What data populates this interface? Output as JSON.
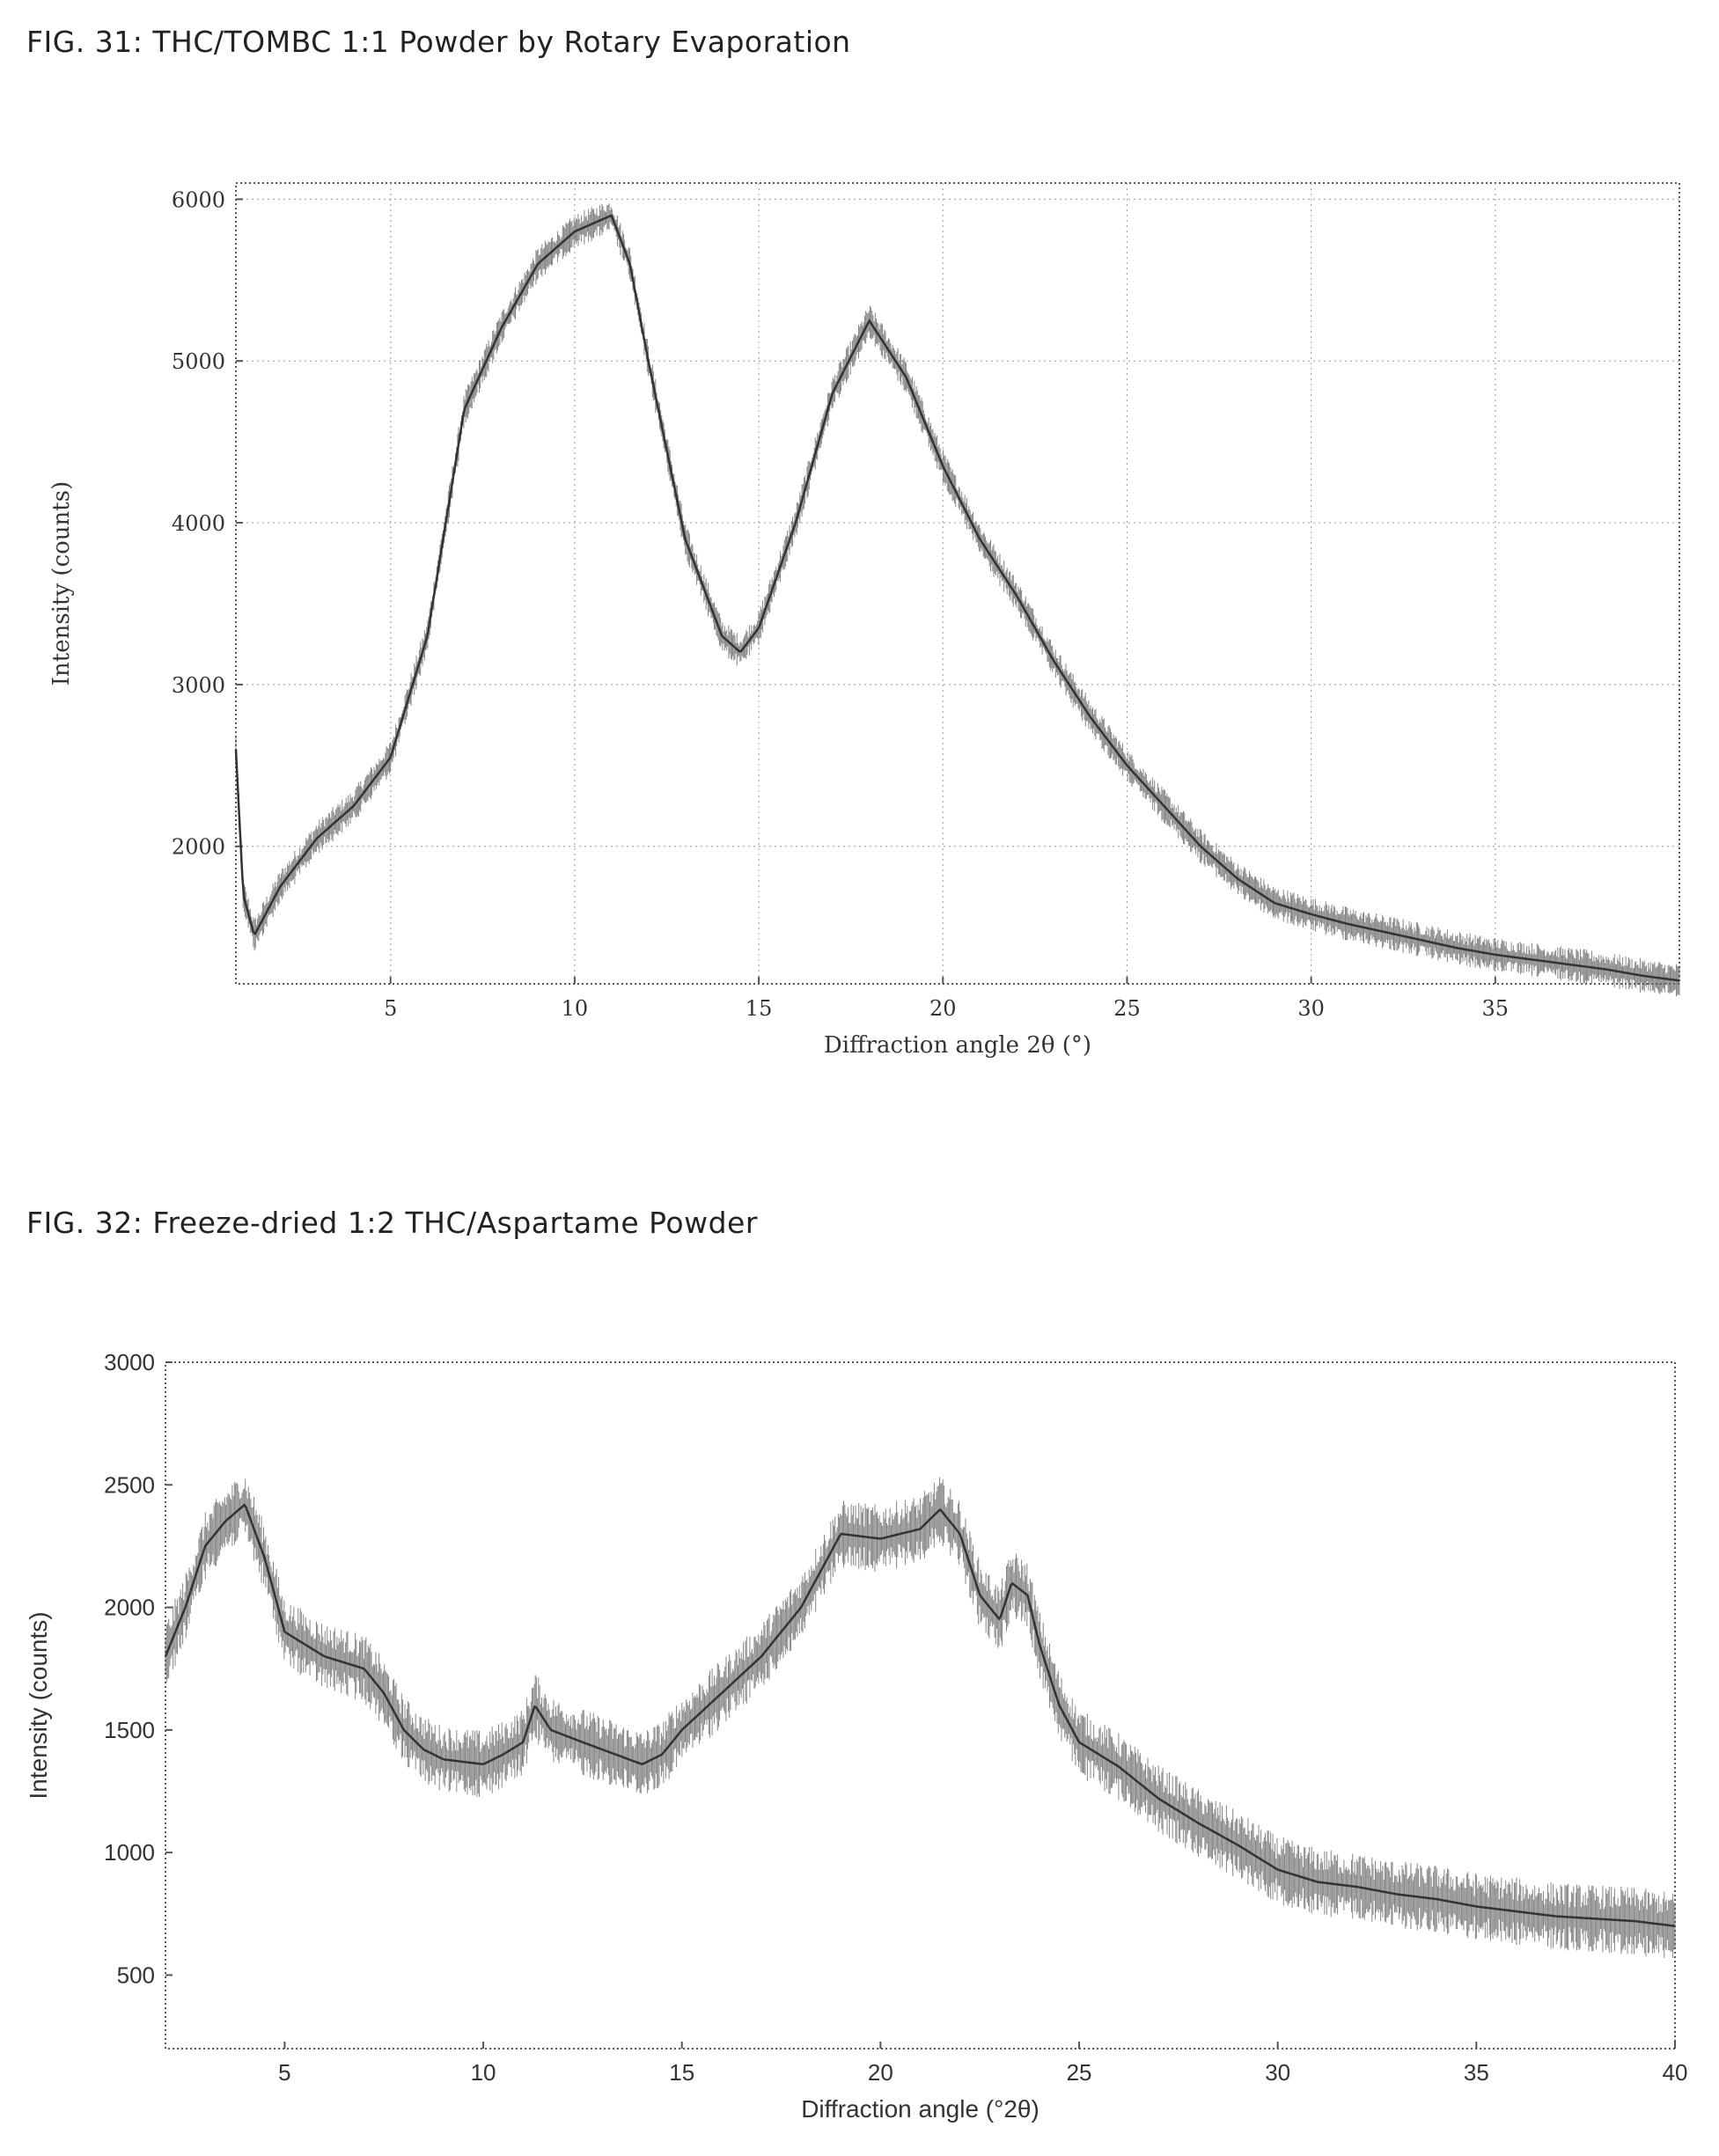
{
  "figures": [
    {
      "title": "FIG. 31: THC/TOMBC 1:1 Powder by Rotary Evaporation",
      "chart_data": {
        "type": "line",
        "xlabel": "Diffraction angle 2θ (°)",
        "ylabel": "Intensity (counts)",
        "xlim": [
          0.8,
          40
        ],
        "ylim": [
          1150,
          6100
        ],
        "x_ticks": [
          5,
          10,
          15,
          20,
          25,
          30,
          35
        ],
        "y_ticks": [
          2000,
          3000,
          4000,
          5000,
          6000
        ],
        "grid": true,
        "legend": "none",
        "series": [
          {
            "x": [
              0.8,
              1.0,
              1.3,
              2,
              3,
              4,
              5,
              6,
              7,
              8,
              9,
              10,
              10.5,
              11,
              11.5,
              12,
              13,
              14,
              14.5,
              15,
              16,
              17,
              18,
              19,
              20,
              21,
              22,
              23,
              24,
              25,
              26,
              27,
              28,
              29,
              30,
              31,
              32,
              33,
              34,
              35,
              36,
              37,
              38,
              39,
              40
            ],
            "y": [
              2600,
              1700,
              1450,
              1750,
              2050,
              2250,
              2550,
              3300,
              4700,
              5200,
              5600,
              5800,
              5850,
              5900,
              5600,
              5000,
              3900,
              3300,
              3200,
              3350,
              4000,
              4800,
              5250,
              4900,
              4350,
              3900,
              3550,
              3150,
              2800,
              2500,
              2250,
              2000,
              1800,
              1650,
              1580,
              1520,
              1470,
              1420,
              1370,
              1330,
              1300,
              1270,
              1240,
              1200,
              1170
            ]
          }
        ]
      }
    },
    {
      "title": "FIG. 32: Freeze-dried 1:2 THC/Aspartame Powder",
      "chart_data": {
        "type": "line",
        "xlabel": "Diffraction angle (°2θ)",
        "ylabel": "Intensity (counts)",
        "xlim": [
          2,
          40
        ],
        "ylim": [
          200,
          3000
        ],
        "x_ticks": [
          5,
          10,
          15,
          20,
          25,
          30,
          35,
          40
        ],
        "y_ticks": [
          500,
          1000,
          1500,
          2000,
          2500,
          3000
        ],
        "grid": false,
        "legend": "none",
        "series": [
          {
            "x": [
              2,
              2.5,
              3,
              3.5,
              4,
              4.5,
              5,
              5.5,
              6,
              7,
              7.5,
              8,
              8.5,
              9,
              10,
              10.5,
              11,
              11.3,
              11.7,
              12.5,
              13,
              14,
              14.5,
              15,
              16,
              17,
              18,
              18.5,
              19,
              20,
              21,
              21.5,
              22,
              22.5,
              23,
              23.3,
              23.7,
              24,
              24.5,
              25,
              26,
              27,
              28,
              29,
              30,
              31,
              32,
              33,
              34,
              35,
              36,
              37,
              38,
              39,
              40
            ],
            "y": [
              1800,
              2000,
              2250,
              2350,
              2420,
              2200,
              1900,
              1850,
              1800,
              1750,
              1650,
              1500,
              1420,
              1380,
              1360,
              1400,
              1450,
              1600,
              1500,
              1450,
              1420,
              1360,
              1400,
              1500,
              1650,
              1800,
              2000,
              2150,
              2300,
              2280,
              2320,
              2400,
              2300,
              2050,
              1950,
              2100,
              2050,
              1850,
              1600,
              1450,
              1350,
              1220,
              1120,
              1030,
              930,
              880,
              860,
              830,
              810,
              780,
              760,
              740,
              730,
              720,
              700
            ]
          }
        ]
      }
    }
  ]
}
